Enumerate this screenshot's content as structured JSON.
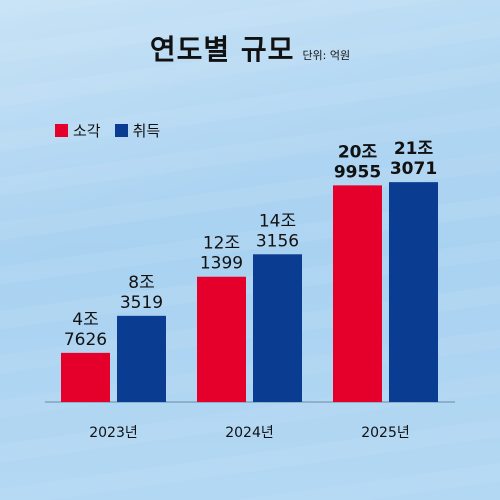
{
  "chart_data": {
    "type": "bar",
    "title": "연도별 규모",
    "unit_label": "단위: 억원",
    "categories": [
      "2023년",
      "2024년",
      "2025년"
    ],
    "series": [
      {
        "name": "소각",
        "values": [
          47626,
          121399,
          209955
        ],
        "labels": [
          [
            "4조",
            "7626"
          ],
          [
            "12조",
            "1399"
          ],
          [
            "20조",
            "9955"
          ]
        ]
      },
      {
        "name": "취득",
        "values": [
          83519,
          143156,
          213071
        ],
        "labels": [
          [
            "8조",
            "3519"
          ],
          [
            "14조",
            "3156"
          ],
          [
            "21조",
            "3071"
          ]
        ]
      }
    ],
    "colors": [
      "#e4002b",
      "#0a3d91"
    ],
    "ylim": [
      0,
      220000
    ],
    "grid": false,
    "legend_position": "top-left"
  }
}
